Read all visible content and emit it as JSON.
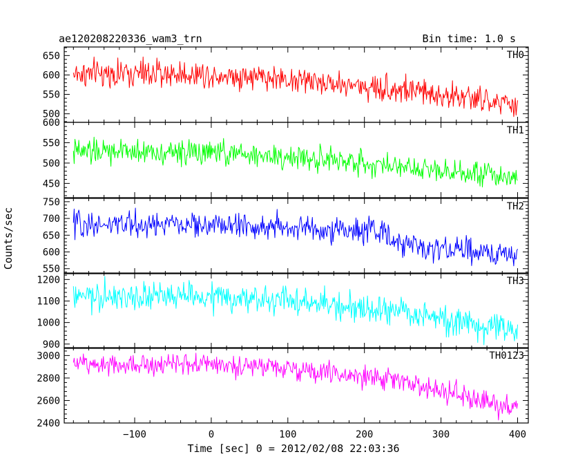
{
  "header": {
    "title": "ae120208220336_wam3_trn",
    "bin_time": "Bin time: 1.0 s"
  },
  "chart_data": {
    "type": "line",
    "title": "ae120208220336_wam3_trn",
    "subtitle": "Bin time: 1.0 s",
    "xlabel": "Time [sec] 0 = 2012/02/08 22:03:36",
    "ylabel": "Counts/sec",
    "xlim": [
      -192,
      414
    ],
    "x_ticks": [
      -100,
      0,
      100,
      200,
      300,
      400
    ],
    "x_tick_labels": [
      "−100",
      "0",
      "100",
      "200",
      "300",
      "400"
    ],
    "grid": false,
    "legend": "none",
    "series": [
      {
        "label": "TH0",
        "color": "#ff0000",
        "ylim": [
          478,
          672
        ],
        "y_ticks": [
          500,
          550,
          600,
          650
        ],
        "x_start": -180,
        "x_end": 400,
        "step": 1,
        "trend_x": [
          -180,
          -100,
          0,
          80,
          150,
          200,
          250,
          300,
          350,
          400
        ],
        "trend_y": [
          603,
          603,
          602,
          593,
          580,
          570,
          562,
          550,
          535,
          520
        ],
        "noise": 24
      },
      {
        "label": "TH1",
        "color": "#00ff00",
        "ylim": [
          415,
          600
        ],
        "y_ticks": [
          450,
          500,
          550,
          600
        ],
        "x_start": -180,
        "x_end": 400,
        "step": 1,
        "trend_x": [
          -180,
          -100,
          0,
          100,
          200,
          300,
          400
        ],
        "trend_y": [
          527,
          528,
          525,
          515,
          500,
          485,
          465
        ],
        "noise": 21
      },
      {
        "label": "TH2",
        "color": "#0000ff",
        "ylim": [
          535,
          760
        ],
        "y_ticks": [
          550,
          600,
          650,
          700,
          750
        ],
        "x_start": -180,
        "x_end": 400,
        "step": 1,
        "trend_x": [
          -180,
          -100,
          0,
          100,
          200,
          225,
          240,
          300,
          350,
          400
        ],
        "trend_y": [
          683,
          682,
          680,
          673,
          662,
          658,
          625,
          610,
          600,
          590
        ],
        "noise": 26
      },
      {
        "label": "TH3",
        "color": "#00ffff",
        "ylim": [
          880,
          1230
        ],
        "y_ticks": [
          900,
          1000,
          1100,
          1200
        ],
        "x_start": -180,
        "x_end": 400,
        "step": 1,
        "trend_x": [
          -180,
          -100,
          0,
          100,
          200,
          250,
          300,
          350,
          400
        ],
        "trend_y": [
          1115,
          1120,
          1118,
          1100,
          1065,
          1045,
          1015,
          985,
          955
        ],
        "noise": 45
      },
      {
        "label": "TH0123",
        "color": "#ff00ff",
        "ylim": [
          2400,
          3070
        ],
        "y_ticks": [
          2400,
          2600,
          2800,
          3000
        ],
        "x_start": -180,
        "x_end": 400,
        "step": 1,
        "trend_x": [
          -180,
          -100,
          0,
          100,
          200,
          250,
          300,
          350,
          400
        ],
        "trend_y": [
          2925,
          2930,
          2925,
          2880,
          2810,
          2770,
          2680,
          2600,
          2520
        ],
        "noise": 65
      }
    ]
  }
}
